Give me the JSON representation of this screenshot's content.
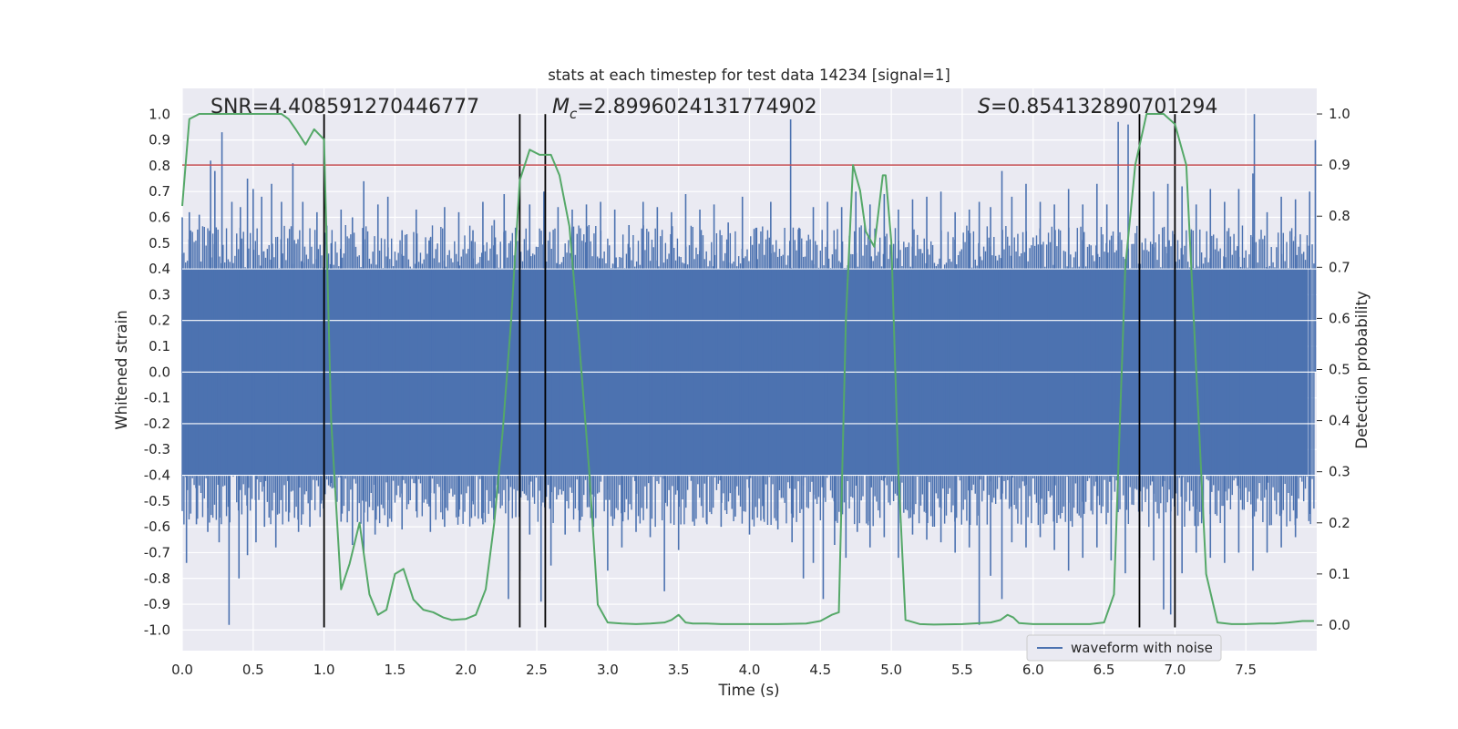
{
  "chart_data": {
    "type": "line",
    "title": "stats at each timestep for test data 14234 [signal=1]",
    "xlabel": "Time (s)",
    "ylabel": "Whitened strain",
    "y2label": "Detection probability",
    "xlim": [
      0.0,
      8.0
    ],
    "ylim": [
      -1.08,
      1.1
    ],
    "y2lim": [
      -0.05,
      1.05
    ],
    "x_ticks": [
      "0.0",
      "0.5",
      "1.0",
      "1.5",
      "2.0",
      "2.5",
      "3.0",
      "3.5",
      "4.0",
      "4.5",
      "5.0",
      "5.5",
      "6.0",
      "6.5",
      "7.0",
      "7.5"
    ],
    "y_ticks": [
      "-1.0",
      "-0.9",
      "-0.8",
      "-0.7",
      "-0.6",
      "-0.5",
      "-0.4",
      "-0.3",
      "-0.2",
      "-0.1",
      "0.0",
      "0.1",
      "0.2",
      "0.3",
      "0.4",
      "0.5",
      "0.6",
      "0.7",
      "0.8",
      "0.9",
      "1.0"
    ],
    "y2_ticks": [
      "0.0",
      "0.1",
      "0.2",
      "0.3",
      "0.4",
      "0.5",
      "0.6",
      "0.7",
      "0.8",
      "0.9",
      "1.0"
    ],
    "threshold": {
      "value": 0.9,
      "axis": "right",
      "color": "#c44e52"
    },
    "vertical_lines": [
      1.0,
      2.38,
      2.56,
      6.75,
      7.0
    ],
    "vlines_ylim": [
      -0.99,
      1.0
    ],
    "annotations": {
      "snr": "SNR=4.408591270446777",
      "mc_symbol": "M",
      "mc_sub": "c",
      "mc_value": "=2.8996024131774902",
      "s_symbol": "S",
      "s_value": "=0.854132890701294"
    },
    "legend": {
      "label": "waveform with noise",
      "position": "lower right"
    },
    "waveform": {
      "name": "waveform with noise",
      "color": "#4c72b0",
      "envelope_abs": 0.4,
      "peaks_up": [
        [
          0.0,
          0.6
        ],
        [
          0.05,
          0.62
        ],
        [
          0.12,
          0.61
        ],
        [
          0.2,
          0.82
        ],
        [
          0.23,
          0.78
        ],
        [
          0.28,
          0.93
        ],
        [
          0.35,
          0.66
        ],
        [
          0.41,
          0.64
        ],
        [
          0.46,
          0.75
        ],
        [
          0.5,
          0.71
        ],
        [
          0.56,
          0.68
        ],
        [
          0.63,
          0.73
        ],
        [
          0.7,
          0.66
        ],
        [
          0.78,
          0.81
        ],
        [
          0.85,
          0.66
        ],
        [
          0.95,
          0.62
        ],
        [
          1.05,
          0.5
        ],
        [
          1.12,
          0.63
        ],
        [
          1.2,
          0.6
        ],
        [
          1.28,
          0.74
        ],
        [
          1.38,
          0.65
        ],
        [
          1.45,
          0.68
        ],
        [
          1.55,
          0.55
        ],
        [
          1.65,
          0.63
        ],
        [
          1.75,
          0.52
        ],
        [
          1.85,
          0.64
        ],
        [
          1.95,
          0.62
        ],
        [
          2.05,
          0.55
        ],
        [
          2.12,
          0.66
        ],
        [
          2.2,
          0.59
        ],
        [
          2.27,
          0.69
        ],
        [
          2.35,
          0.56
        ],
        [
          2.45,
          0.65
        ],
        [
          2.55,
          0.7
        ],
        [
          2.65,
          0.64
        ],
        [
          2.75,
          0.63
        ],
        [
          2.85,
          0.65
        ],
        [
          2.95,
          0.66
        ],
        [
          3.05,
          0.63
        ],
        [
          3.15,
          0.57
        ],
        [
          3.25,
          0.66
        ],
        [
          3.35,
          0.64
        ],
        [
          3.45,
          0.62
        ],
        [
          3.55,
          0.69
        ],
        [
          3.65,
          0.63
        ],
        [
          3.75,
          0.65
        ],
        [
          3.85,
          0.58
        ],
        [
          3.95,
          0.68
        ],
        [
          4.05,
          0.56
        ],
        [
          4.15,
          0.66
        ],
        [
          4.29,
          0.98
        ],
        [
          4.35,
          0.56
        ],
        [
          4.45,
          0.64
        ],
        [
          4.55,
          0.66
        ],
        [
          4.65,
          0.64
        ],
        [
          4.75,
          0.7
        ],
        [
          4.85,
          0.65
        ],
        [
          4.95,
          0.69
        ],
        [
          5.05,
          0.63
        ],
        [
          5.15,
          0.67
        ],
        [
          5.25,
          0.68
        ],
        [
          5.35,
          0.7
        ],
        [
          5.45,
          0.62
        ],
        [
          5.55,
          0.63
        ],
        [
          5.62,
          0.66
        ],
        [
          5.7,
          0.64
        ],
        [
          5.78,
          0.78
        ],
        [
          5.85,
          0.68
        ],
        [
          5.95,
          0.73
        ],
        [
          6.05,
          0.66
        ],
        [
          6.15,
          0.65
        ],
        [
          6.25,
          0.71
        ],
        [
          6.35,
          0.65
        ],
        [
          6.45,
          0.73
        ],
        [
          6.52,
          0.65
        ],
        [
          6.6,
          0.97
        ],
        [
          6.67,
          0.96
        ],
        [
          6.75,
          0.7
        ],
        [
          6.85,
          0.7
        ],
        [
          6.95,
          0.73
        ],
        [
          7.05,
          0.72
        ],
        [
          7.15,
          0.65
        ],
        [
          7.25,
          0.71
        ],
        [
          7.35,
          0.66
        ],
        [
          7.45,
          0.71
        ],
        [
          7.55,
          0.77
        ],
        [
          7.56,
          1.0
        ],
        [
          7.65,
          0.62
        ],
        [
          7.75,
          0.68
        ],
        [
          7.85,
          0.67
        ],
        [
          7.95,
          0.7
        ],
        [
          7.99,
          0.9
        ]
      ],
      "peaks_down": [
        [
          0.03,
          -0.74
        ],
        [
          0.1,
          -0.59
        ],
        [
          0.18,
          -0.62
        ],
        [
          0.26,
          -0.66
        ],
        [
          0.33,
          -0.98
        ],
        [
          0.4,
          -0.8
        ],
        [
          0.46,
          -0.71
        ],
        [
          0.52,
          -0.66
        ],
        [
          0.58,
          -0.6
        ],
        [
          0.66,
          -0.68
        ],
        [
          0.75,
          -0.58
        ],
        [
          0.82,
          -0.62
        ],
        [
          0.9,
          -0.6
        ],
        [
          0.98,
          -0.51
        ],
        [
          1.05,
          -0.43
        ],
        [
          1.12,
          -0.58
        ],
        [
          1.2,
          -0.67
        ],
        [
          1.28,
          -0.7
        ],
        [
          1.36,
          -0.63
        ],
        [
          1.45,
          -0.6
        ],
        [
          1.55,
          -0.61
        ],
        [
          1.65,
          -0.54
        ],
        [
          1.75,
          -0.62
        ],
        [
          1.85,
          -0.6
        ],
        [
          1.95,
          -0.56
        ],
        [
          2.05,
          -0.5
        ],
        [
          2.12,
          -0.59
        ],
        [
          2.2,
          -0.56
        ],
        [
          2.3,
          -0.88
        ],
        [
          2.38,
          -0.77
        ],
        [
          2.45,
          -0.63
        ],
        [
          2.53,
          -0.89
        ],
        [
          2.6,
          -0.75
        ],
        [
          2.7,
          -0.63
        ],
        [
          2.8,
          -0.62
        ],
        [
          2.9,
          -0.6
        ],
        [
          3.0,
          -0.77
        ],
        [
          3.1,
          -0.68
        ],
        [
          3.2,
          -0.62
        ],
        [
          3.3,
          -0.64
        ],
        [
          3.4,
          -0.85
        ],
        [
          3.5,
          -0.69
        ],
        [
          3.6,
          -0.58
        ],
        [
          3.7,
          -0.59
        ],
        [
          3.8,
          -0.6
        ],
        [
          3.9,
          -0.56
        ],
        [
          4.0,
          -0.63
        ],
        [
          4.1,
          -0.57
        ],
        [
          4.2,
          -0.61
        ],
        [
          4.3,
          -0.66
        ],
        [
          4.38,
          -0.8
        ],
        [
          4.45,
          -0.74
        ],
        [
          4.52,
          -0.88
        ],
        [
          4.6,
          -0.67
        ],
        [
          4.68,
          -0.72
        ],
        [
          4.76,
          -0.62
        ],
        [
          4.85,
          -0.68
        ],
        [
          4.95,
          -0.64
        ],
        [
          5.05,
          -0.72
        ],
        [
          5.15,
          -0.63
        ],
        [
          5.25,
          -0.65
        ],
        [
          5.35,
          -0.66
        ],
        [
          5.45,
          -0.7
        ],
        [
          5.55,
          -0.68
        ],
        [
          5.62,
          -0.98
        ],
        [
          5.7,
          -0.79
        ],
        [
          5.78,
          -0.88
        ],
        [
          5.85,
          -0.66
        ],
        [
          5.95,
          -0.68
        ],
        [
          6.05,
          -0.64
        ],
        [
          6.15,
          -0.69
        ],
        [
          6.25,
          -0.77
        ],
        [
          6.35,
          -0.72
        ],
        [
          6.45,
          -0.68
        ],
        [
          6.55,
          -0.73
        ],
        [
          6.65,
          -0.78
        ],
        [
          6.75,
          -0.72
        ],
        [
          6.85,
          -0.73
        ],
        [
          6.92,
          -0.92
        ],
        [
          6.97,
          -0.94
        ],
        [
          7.05,
          -0.78
        ],
        [
          7.15,
          -0.7
        ],
        [
          7.25,
          -0.72
        ],
        [
          7.35,
          -0.74
        ],
        [
          7.45,
          -0.7
        ],
        [
          7.55,
          -0.77
        ],
        [
          7.65,
          -0.7
        ],
        [
          7.75,
          -0.68
        ],
        [
          7.85,
          -0.64
        ],
        [
          7.95,
          -0.55
        ]
      ]
    },
    "probability": {
      "name": "Detection probability",
      "color": "#55a868",
      "x": [
        0.0,
        0.05,
        0.12,
        0.2,
        0.3,
        0.4,
        0.5,
        0.6,
        0.7,
        0.75,
        0.8,
        0.87,
        0.93,
        1.0,
        1.05,
        1.12,
        1.18,
        1.25,
        1.32,
        1.38,
        1.44,
        1.5,
        1.56,
        1.63,
        1.7,
        1.77,
        1.84,
        1.9,
        2.0,
        2.07,
        2.14,
        2.2,
        2.26,
        2.32,
        2.38,
        2.45,
        2.52,
        2.6,
        2.66,
        2.73,
        2.8,
        2.87,
        2.93,
        3.0,
        3.1,
        3.2,
        3.3,
        3.4,
        3.45,
        3.5,
        3.55,
        3.6,
        3.7,
        3.8,
        3.9,
        4.0,
        4.2,
        4.4,
        4.5,
        4.58,
        4.63,
        4.68,
        4.73,
        4.78,
        4.82,
        4.88,
        4.94,
        4.96,
        5.0,
        5.05,
        5.1,
        5.2,
        5.3,
        5.5,
        5.7,
        5.77,
        5.82,
        5.86,
        5.9,
        6.0,
        6.2,
        6.4,
        6.5,
        6.57,
        6.65,
        6.72,
        6.8,
        6.85,
        6.92,
        7.0,
        7.08,
        7.15,
        7.22,
        7.3,
        7.4,
        7.5,
        7.6,
        7.7,
        7.8,
        7.9,
        7.98
      ],
      "y": [
        0.82,
        0.99,
        1.0,
        1.0,
        1.0,
        1.0,
        1.0,
        1.0,
        1.0,
        0.99,
        0.97,
        0.94,
        0.97,
        0.95,
        0.4,
        0.07,
        0.12,
        0.2,
        0.06,
        0.02,
        0.03,
        0.1,
        0.11,
        0.05,
        0.03,
        0.025,
        0.015,
        0.01,
        0.012,
        0.02,
        0.07,
        0.2,
        0.38,
        0.6,
        0.87,
        0.93,
        0.92,
        0.92,
        0.88,
        0.78,
        0.55,
        0.3,
        0.04,
        0.005,
        0.003,
        0.002,
        0.003,
        0.005,
        0.01,
        0.02,
        0.005,
        0.003,
        0.003,
        0.002,
        0.002,
        0.002,
        0.002,
        0.003,
        0.008,
        0.02,
        0.025,
        0.6,
        0.9,
        0.85,
        0.77,
        0.74,
        0.88,
        0.88,
        0.75,
        0.3,
        0.01,
        0.002,
        0.001,
        0.002,
        0.005,
        0.01,
        0.02,
        0.015,
        0.004,
        0.002,
        0.002,
        0.002,
        0.005,
        0.06,
        0.7,
        0.9,
        1.0,
        1.0,
        1.0,
        0.98,
        0.9,
        0.5,
        0.1,
        0.005,
        0.002,
        0.002,
        0.003,
        0.003,
        0.005,
        0.008,
        0.008
      ]
    }
  }
}
